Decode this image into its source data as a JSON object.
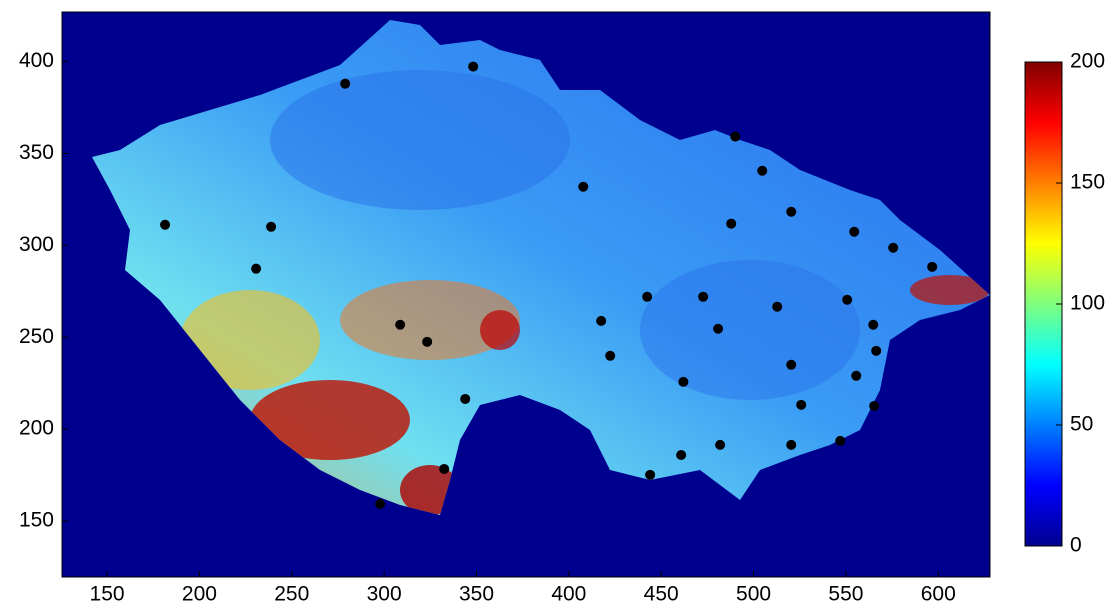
{
  "chart_data": {
    "type": "scatter",
    "x": [
      278.9,
      348.2,
      181.4,
      238.8,
      230.7,
      407.8,
      490.1,
      504.7,
      487.9,
      520.4,
      554.5,
      575.6,
      596.7,
      550.7,
      564.8,
      566.4,
      555.6,
      565.3,
      546.9,
      525.8,
      520.4,
      481.9,
      460.8,
      444.0,
      462.0,
      422.4,
      417.5,
      442.4,
      472.7,
      480.8,
      512.8,
      520.4,
      343.9,
      332.5,
      297.8,
      323.3,
      308.7
    ],
    "y": [
      388.0,
      397.3,
      311.2,
      310.1,
      287.3,
      331.9,
      359.2,
      340.6,
      311.8,
      318.3,
      307.4,
      298.7,
      288.3,
      270.4,
      256.8,
      242.6,
      229.0,
      212.6,
      193.6,
      213.2,
      191.4,
      191.4,
      185.9,
      175.1,
      225.7,
      239.9,
      258.9,
      272.0,
      272.0,
      254.6,
      266.6,
      235.0,
      216.4,
      178.3,
      159.3,
      247.5,
      256.8
    ],
    "color": "#000000",
    "xlim": [
      125.6,
      628
    ],
    "xticks": [
      150,
      200,
      250,
      300,
      350,
      400,
      450,
      500,
      550,
      600
    ],
    "ylim": [
      119.5,
      427
    ],
    "yticks": [
      150,
      200,
      250,
      300,
      350,
      400
    ],
    "clim": [
      0,
      200
    ],
    "cticks": [
      0,
      50,
      100,
      150,
      200
    ]
  }
}
